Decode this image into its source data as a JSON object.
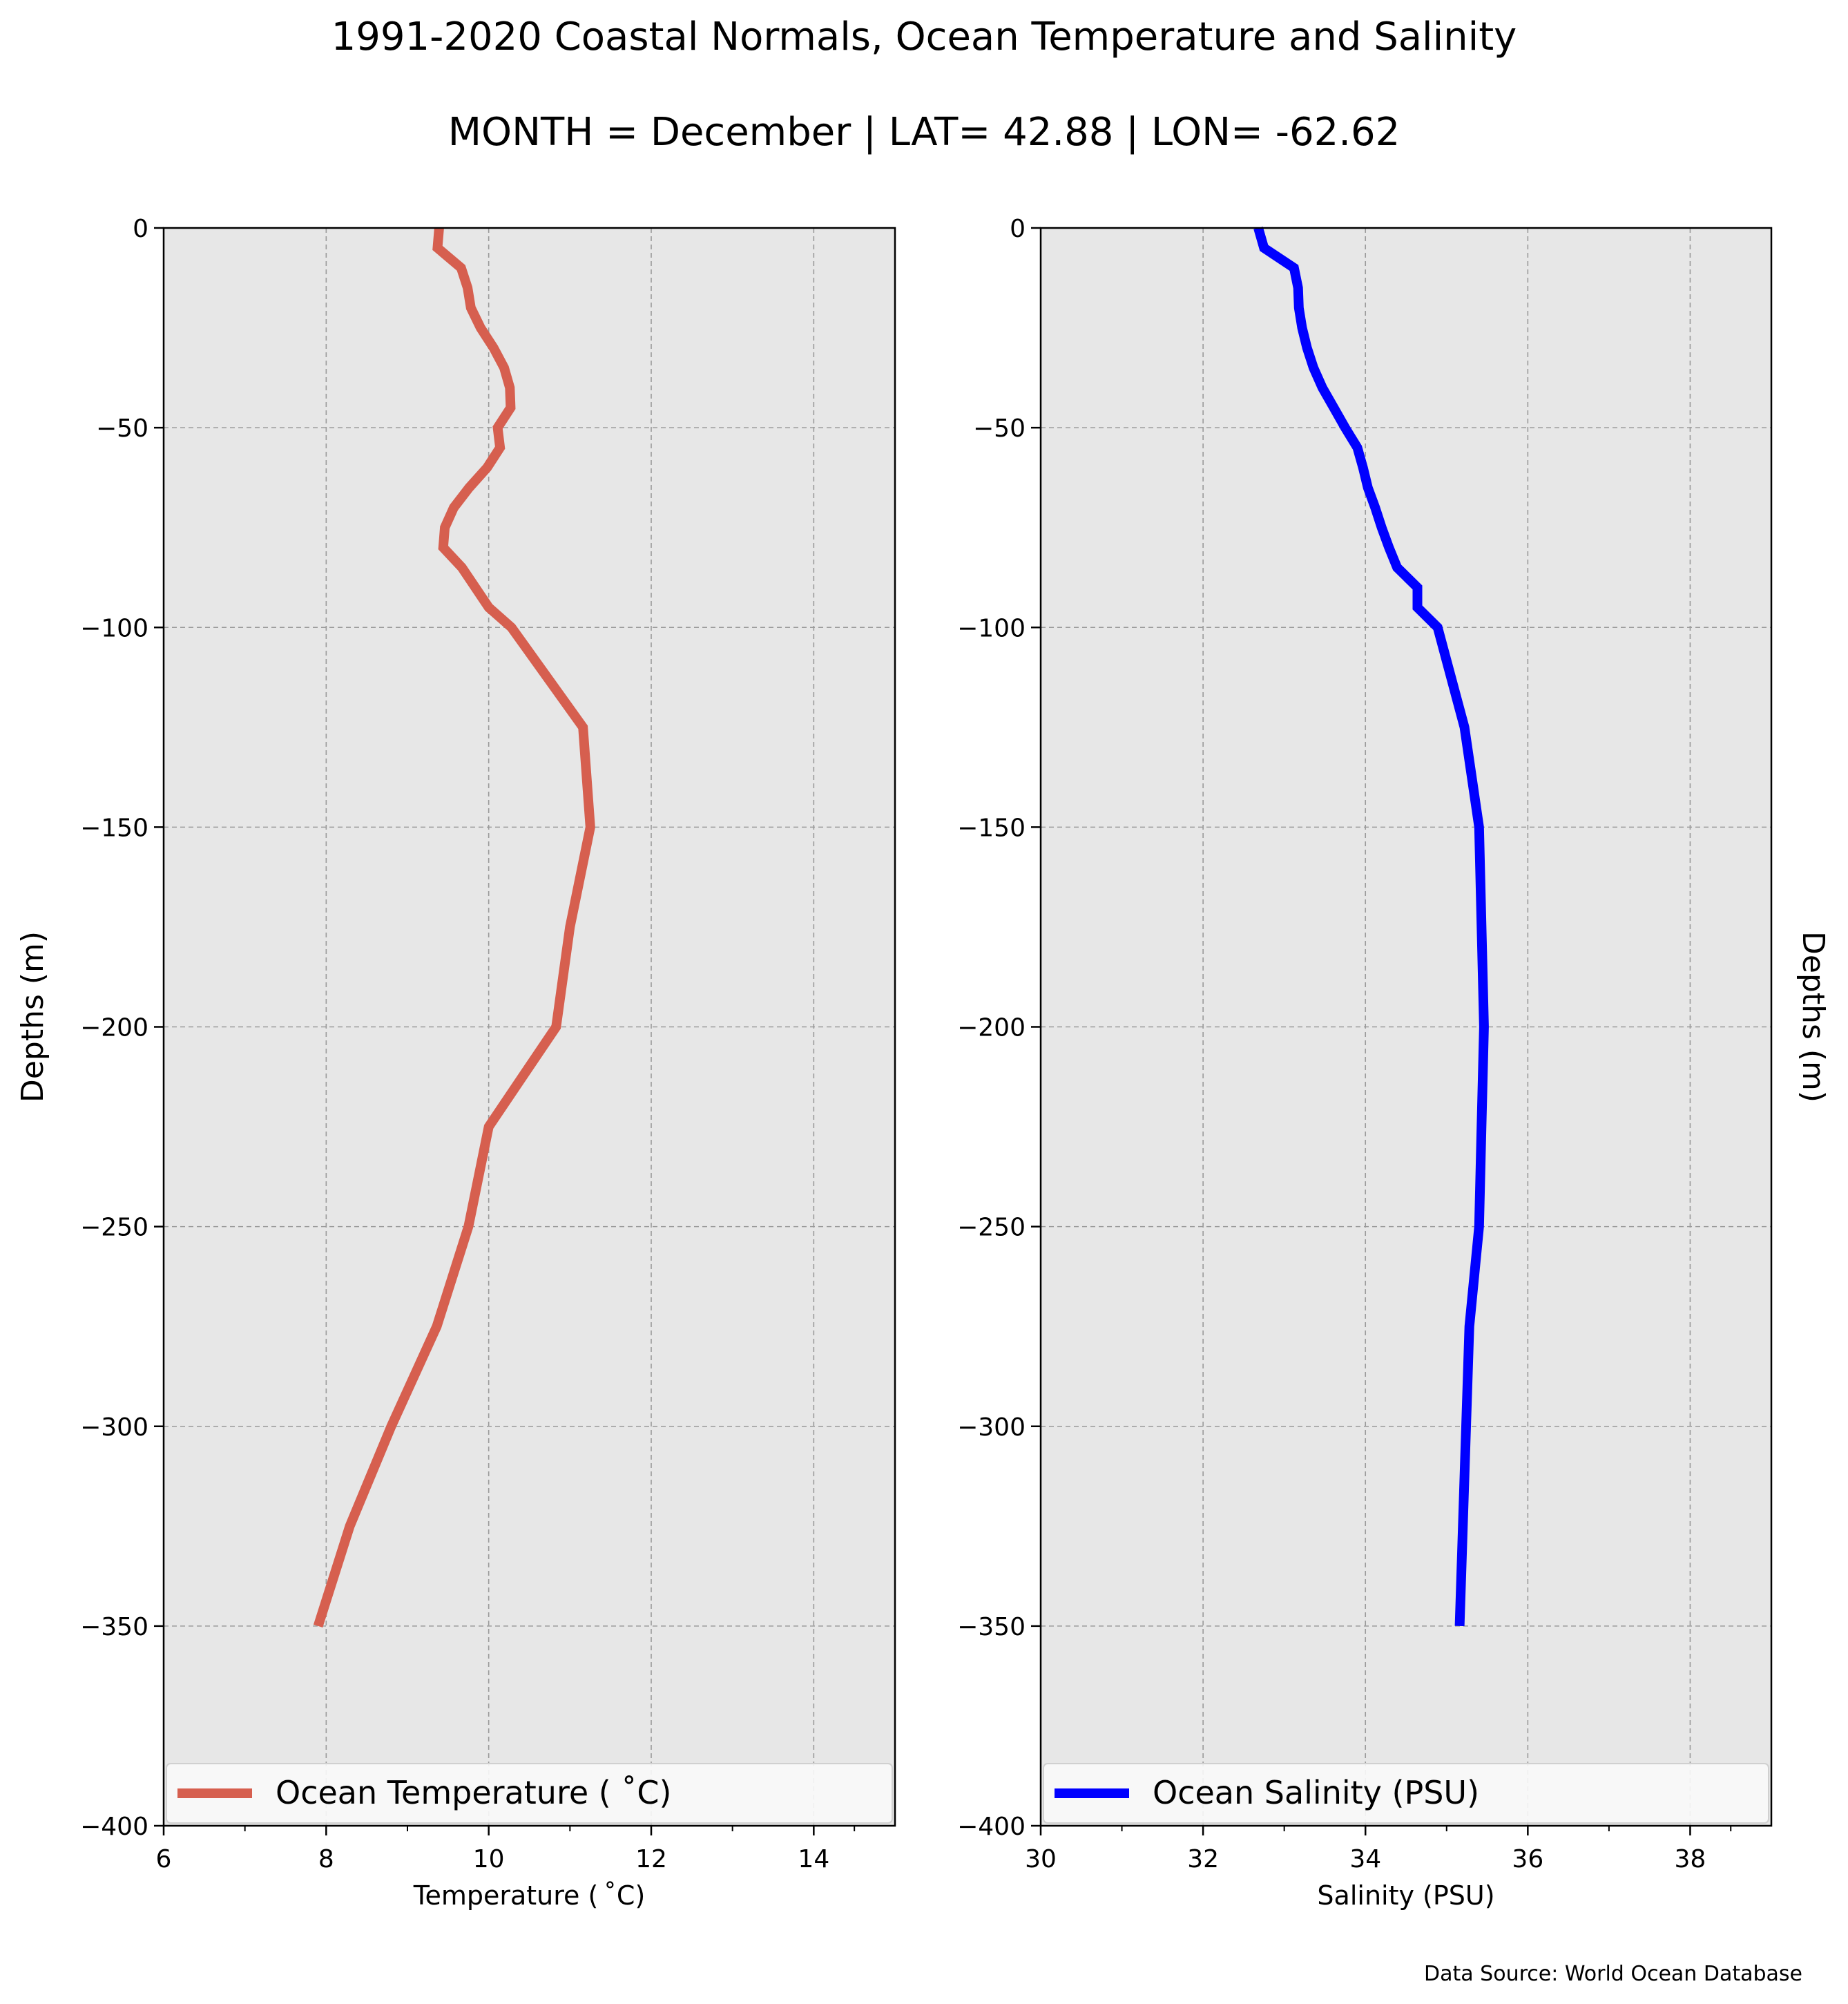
{
  "figure": {
    "title_line1": "1991-2020 Coastal Normals, Ocean Temperature and Salinity",
    "title_line2": "MONTH = December | LAT= 42.88 | LON= -62.62",
    "source": "Data Source: World Ocean Database"
  },
  "chart_data": [
    {
      "type": "line",
      "xlabel": "Temperature ($^\\circ$C)",
      "xlabel_display": "Temperature ( ˚C)",
      "ylabel": "Depths (m)",
      "xlim": [
        6,
        15
      ],
      "ylim": [
        -400,
        0
      ],
      "xticks": [
        6,
        8,
        10,
        12,
        14
      ],
      "yticks": [
        0,
        -50,
        -100,
        -150,
        -200,
        -250,
        -300,
        -350,
        -400
      ],
      "x_tick_labels": [
        "6",
        "8",
        "10",
        "12",
        "14"
      ],
      "y_tick_labels": [
        "0",
        "−50",
        "−100",
        "−150",
        "−200",
        "−250",
        "−300",
        "−350",
        "−400"
      ],
      "grid": true,
      "legend_position": "bottom",
      "series": [
        {
          "name": "Ocean Temperature ( ˚C)",
          "color": "#d65f4f",
          "x": [
            9.39,
            9.37,
            9.66,
            9.74,
            9.78,
            9.9,
            10.06,
            10.19,
            10.26,
            10.27,
            10.11,
            10.14,
            9.98,
            9.76,
            9.57,
            9.46,
            9.44,
            9.67,
            10.0,
            10.28,
            11.16,
            11.25,
            11.0,
            10.83,
            10.0,
            9.75,
            9.36,
            8.8,
            8.29,
            7.9
          ],
          "y": [
            0,
            -5,
            -10,
            -15,
            -20,
            -25,
            -30,
            -35,
            -40,
            -45,
            -50,
            -55,
            -60,
            -65,
            -70,
            -75,
            -80,
            -85,
            -95,
            -100,
            -125,
            -150,
            -175,
            -200,
            -225,
            -250,
            -275,
            -300,
            -325,
            -350
          ]
        }
      ]
    },
    {
      "type": "line",
      "xlabel": "Salinity (PSU)",
      "ylabel": "Depths (m)",
      "xlim": [
        30,
        39
      ],
      "ylim": [
        -400,
        0
      ],
      "xticks": [
        30,
        32,
        34,
        36,
        38
      ],
      "yticks": [
        0,
        -50,
        -100,
        -150,
        -200,
        -250,
        -300,
        -350,
        -400
      ],
      "x_tick_labels": [
        "30",
        "32",
        "34",
        "36",
        "38"
      ],
      "y_tick_labels": [
        "0",
        "−50",
        "−100",
        "−150",
        "−200",
        "−250",
        "−300",
        "−350",
        "−400"
      ],
      "grid": true,
      "legend_position": "bottom",
      "series": [
        {
          "name": "Ocean Salinity (PSU)",
          "color": "#0000ff",
          "x": [
            32.68,
            32.75,
            33.12,
            33.17,
            33.18,
            33.22,
            33.28,
            33.36,
            33.47,
            33.61,
            33.75,
            33.9,
            33.97,
            34.03,
            34.12,
            34.2,
            34.29,
            34.39,
            34.64,
            34.64,
            34.89,
            35.22,
            35.4,
            35.46,
            35.43,
            35.4,
            35.28,
            35.24,
            35.2,
            35.16
          ],
          "y": [
            0,
            -5,
            -10,
            -15,
            -20,
            -25,
            -30,
            -35,
            -40,
            -45,
            -50,
            -55,
            -60,
            -65,
            -70,
            -75,
            -80,
            -85,
            -90,
            -95,
            -100,
            -125,
            -150,
            -200,
            -225,
            -250,
            -275,
            -300,
            -325,
            -350
          ]
        }
      ]
    }
  ]
}
